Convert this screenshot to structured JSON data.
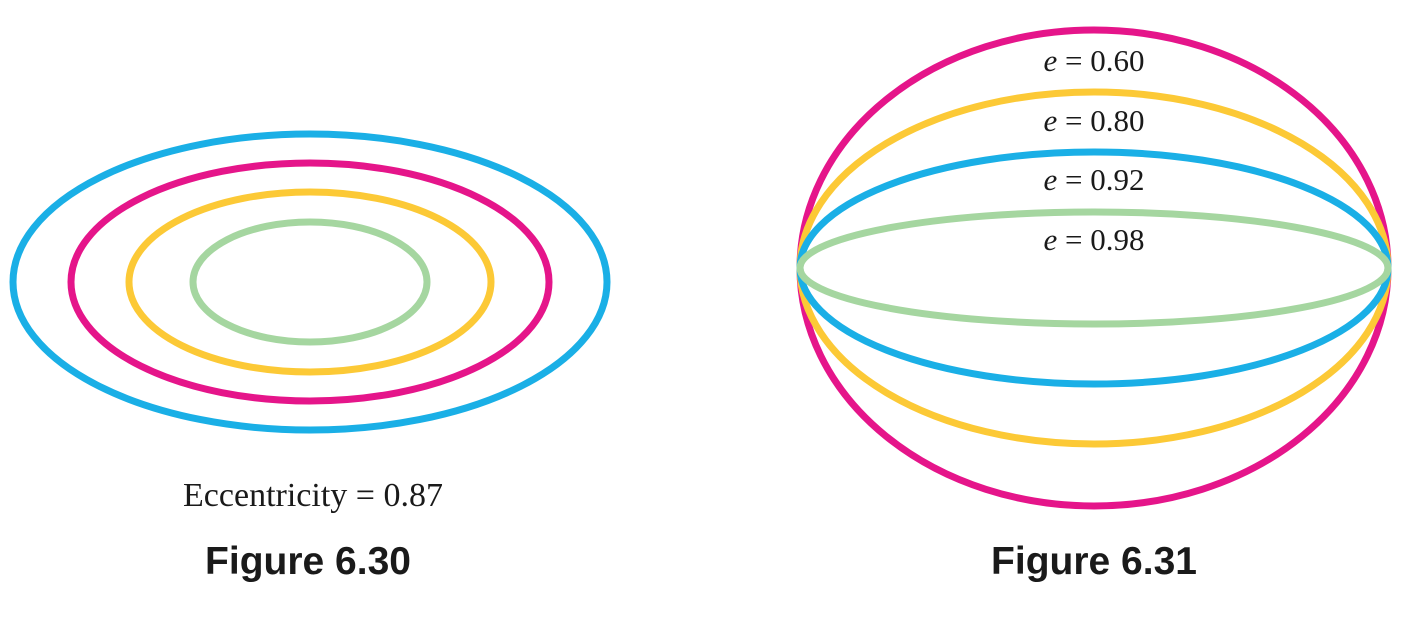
{
  "colors": {
    "blue": "#1AAFE6",
    "magenta": "#E5158A",
    "yellow": "#FCC936",
    "green": "#A5D6A0",
    "text": "#1a1a1a"
  },
  "figure_left": {
    "title": "Figure 6.30",
    "caption": "Eccentricity = 0.87",
    "eccentricity": 0.87,
    "ellipses": [
      {
        "color": "blue"
      },
      {
        "color": "magenta"
      },
      {
        "color": "yellow"
      },
      {
        "color": "green"
      }
    ]
  },
  "figure_right": {
    "title": "Figure 6.31",
    "ellipses": [
      {
        "label_var": "e",
        "label_eq": " = 0.60",
        "e": 0.6,
        "color": "magenta"
      },
      {
        "label_var": "e",
        "label_eq": " = 0.80",
        "e": 0.8,
        "color": "yellow"
      },
      {
        "label_var": "e",
        "label_eq": " = 0.92",
        "e": 0.92,
        "color": "blue"
      },
      {
        "label_var": "e",
        "label_eq": " = 0.98",
        "e": 0.98,
        "color": "green"
      }
    ]
  }
}
